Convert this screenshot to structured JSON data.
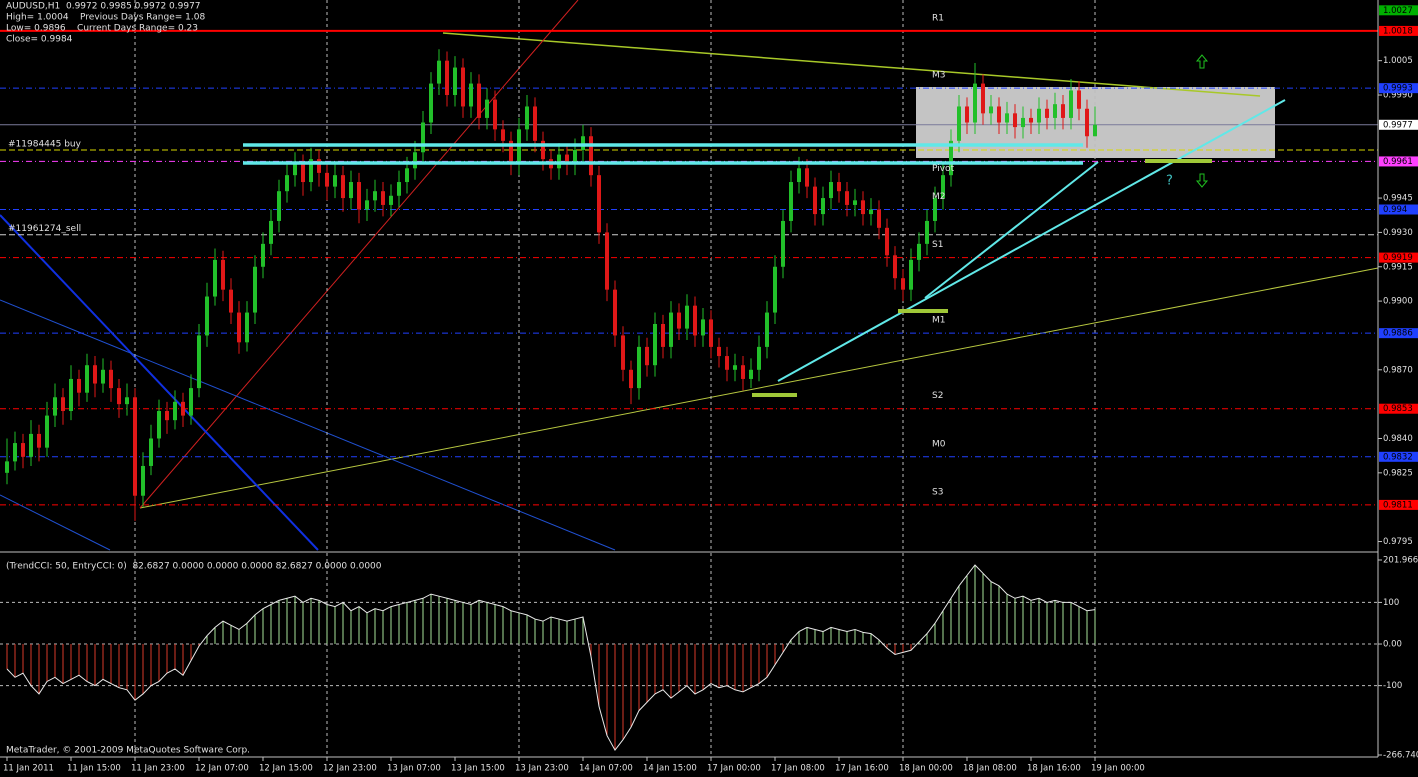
{
  "chart_data": [
    {
      "type": "candlestick",
      "title_lines": [
        "AUDUSD,H1  0.9972 0.9985 0.9972 0.9977",
        "High= 1.0004    Previous Days Range= 1.08",
        "Low= 0.9896    Current Days Range= 0.23",
        "Close= 0.9984"
      ],
      "up_color": "#22c02a",
      "down_color": "#e01818",
      "ylim": [
        0.97913,
        1.00315
      ],
      "yticks": [
        1.0005,
        {
          "value": 0.999,
          "label": "0.9990"
        },
        0.9945,
        {
          "value": 0.993,
          "label": "0.9930"
        },
        0.9915,
        {
          "value": 0.99,
          "label": "0.9900"
        },
        {
          "value": 0.987,
          "label": "0.9870"
        },
        {
          "value": 0.984,
          "label": "0.9840"
        },
        0.9825,
        0.9795
      ],
      "xlim": [
        -0.875,
        171.375
      ],
      "xticks": [
        {
          "value": 0,
          "label": "11 Jan 2011"
        },
        {
          "value": 8,
          "label": "11 Jan 15:00"
        },
        {
          "value": 16,
          "label": "11 Jan 23:00"
        },
        {
          "value": 24,
          "label": "12 Jan 07:00"
        },
        {
          "value": 32,
          "label": "12 Jan 15:00"
        },
        {
          "value": 40,
          "label": "12 Jan 23:00"
        },
        {
          "value": 48,
          "label": "13 Jan 07:00"
        },
        {
          "value": 56,
          "label": "13 Jan 15:00"
        },
        {
          "value": 64,
          "label": "13 Jan 23:00"
        },
        {
          "value": 72,
          "label": "14 Jan 07:00"
        },
        {
          "value": 80,
          "label": "14 Jan 15:00"
        },
        {
          "value": 88,
          "label": "17 Jan 00:00"
        },
        {
          "value": 96,
          "label": "17 Jan 08:00"
        },
        {
          "value": 104,
          "label": "17 Jan 16:00"
        },
        {
          "value": 112,
          "label": "18 Jan 00:00"
        },
        {
          "value": 120,
          "label": "18 Jan 08:00"
        },
        {
          "value": 128,
          "label": "18 Jan 16:00"
        },
        {
          "value": 136,
          "label": "19 Jan 00:00"
        }
      ],
      "grid": true,
      "levels": [
        {
          "label": "R1",
          "value": 1.0018,
          "color": "#ff0000",
          "style": "solid"
        },
        {
          "label": "M3",
          "value": 0.9993,
          "color": "#2040ff",
          "style": "dashed"
        },
        {
          "label": "Pivot",
          "value": 0.9961,
          "color": "#ff40ff",
          "style": "dashed"
        },
        {
          "label": "M2",
          "value": 0.994,
          "color": "#2040ff",
          "style": "dashed"
        },
        {
          "label": "S1",
          "value": 0.9919,
          "color": "#ff0000",
          "style": "dashed"
        },
        {
          "label": "M1",
          "value": 0.9886,
          "color": "#2040ff",
          "style": "dashed"
        },
        {
          "label": "S2",
          "value": 0.9853,
          "color": "#ff0000",
          "style": "dashed"
        },
        {
          "label": "M0",
          "value": 0.9832,
          "color": "#2040ff",
          "style": "dashed"
        },
        {
          "label": "S3",
          "value": 0.9811,
          "color": "#ff0000",
          "style": "dashed"
        }
      ],
      "price_tags": [
        {
          "value": 1.0027,
          "color": "#00b000"
        },
        {
          "value": 0.9977,
          "color": "#ffffff"
        }
      ],
      "orders": [
        {
          "label": "#11984445 buy",
          "value": 0.9966,
          "color": "#d8d800"
        },
        {
          "label": "#11961274_sell",
          "value": 0.9929,
          "color": "#d0d0d0"
        }
      ],
      "annotation": "?",
      "candles": [
        [
          0.9825,
          0.984,
          0.982,
          0.983
        ],
        [
          0.983,
          0.9843,
          0.9826,
          0.9838
        ],
        [
          0.9838,
          0.9842,
          0.9827,
          0.9832
        ],
        [
          0.9832,
          0.9848,
          0.9828,
          0.9842
        ],
        [
          0.9842,
          0.9846,
          0.983,
          0.9836
        ],
        [
          0.9836,
          0.9856,
          0.9832,
          0.985
        ],
        [
          0.985,
          0.9864,
          0.9845,
          0.9858
        ],
        [
          0.9858,
          0.9862,
          0.9846,
          0.9852
        ],
        [
          0.9852,
          0.9872,
          0.9848,
          0.9866
        ],
        [
          0.9866,
          0.987,
          0.9854,
          0.986
        ],
        [
          0.986,
          0.9877,
          0.9856,
          0.9872
        ],
        [
          0.9872,
          0.9876,
          0.9858,
          0.9864
        ],
        [
          0.9864,
          0.9875,
          0.986,
          0.987
        ],
        [
          0.987,
          0.9874,
          0.9856,
          0.9862
        ],
        [
          0.9862,
          0.9866,
          0.9849,
          0.9855
        ],
        [
          0.9855,
          0.9864,
          0.985,
          0.9858
        ],
        [
          0.9858,
          0.9862,
          0.9804,
          0.9815
        ],
        [
          0.9815,
          0.9834,
          0.981,
          0.9828
        ],
        [
          0.9828,
          0.9846,
          0.9824,
          0.984
        ],
        [
          0.984,
          0.9857,
          0.9836,
          0.9852
        ],
        [
          0.9852,
          0.9856,
          0.9842,
          0.9848
        ],
        [
          0.9848,
          0.9861,
          0.9844,
          0.9856
        ],
        [
          0.9856,
          0.986,
          0.9845,
          0.985
        ],
        [
          0.985,
          0.9868,
          0.9846,
          0.9862
        ],
        [
          0.9862,
          0.989,
          0.9858,
          0.9885
        ],
        [
          0.9885,
          0.9908,
          0.988,
          0.9902
        ],
        [
          0.9902,
          0.9923,
          0.9898,
          0.9918
        ],
        [
          0.9918,
          0.9922,
          0.99,
          0.9905
        ],
        [
          0.9905,
          0.991,
          0.989,
          0.9895
        ],
        [
          0.9895,
          0.99,
          0.9877,
          0.9882
        ],
        [
          0.9882,
          0.99,
          0.9878,
          0.9895
        ],
        [
          0.9895,
          0.992,
          0.989,
          0.9915
        ],
        [
          0.9915,
          0.993,
          0.991,
          0.9925
        ],
        [
          0.9925,
          0.994,
          0.992,
          0.9935
        ],
        [
          0.9935,
          0.9953,
          0.993,
          0.9948
        ],
        [
          0.9948,
          0.996,
          0.9943,
          0.9955
        ],
        [
          0.9955,
          0.9965,
          0.995,
          0.996
        ],
        [
          0.996,
          0.9964,
          0.9946,
          0.9952
        ],
        [
          0.9952,
          0.9967,
          0.9948,
          0.9962
        ],
        [
          0.9962,
          0.9966,
          0.995,
          0.9956
        ],
        [
          0.9956,
          0.996,
          0.9944,
          0.995
        ],
        [
          0.995,
          0.996,
          0.9945,
          0.9955
        ],
        [
          0.9955,
          0.9959,
          0.9939,
          0.9945
        ],
        [
          0.9945,
          0.9957,
          0.994,
          0.9952
        ],
        [
          0.9952,
          0.9956,
          0.9934,
          0.994
        ],
        [
          0.994,
          0.9949,
          0.9935,
          0.9944
        ],
        [
          0.9944,
          0.9953,
          0.9939,
          0.9948
        ],
        [
          0.9948,
          0.9952,
          0.9937,
          0.9942
        ],
        [
          0.9942,
          0.9951,
          0.9937,
          0.9946
        ],
        [
          0.9946,
          0.9957,
          0.9941,
          0.9952
        ],
        [
          0.9952,
          0.9963,
          0.9947,
          0.9958
        ],
        [
          0.9958,
          0.997,
          0.9953,
          0.9965
        ],
        [
          0.9965,
          0.9983,
          0.996,
          0.9978
        ],
        [
          0.9978,
          1.0,
          0.9973,
          0.9995
        ],
        [
          0.9995,
          1.001,
          0.999,
          1.0005
        ],
        [
          1.0005,
          1.0009,
          0.9985,
          0.999
        ],
        [
          0.999,
          1.0007,
          0.9985,
          1.0002
        ],
        [
          1.0002,
          1.0006,
          0.998,
          0.9985
        ],
        [
          0.9985,
          1.0,
          0.998,
          0.9995
        ],
        [
          0.9995,
          0.9999,
          0.9975,
          0.998
        ],
        [
          0.998,
          0.9993,
          0.9975,
          0.9988
        ],
        [
          0.9988,
          0.9992,
          0.997,
          0.9975
        ],
        [
          0.9975,
          0.9979,
          0.9965,
          0.997
        ],
        [
          0.997,
          0.9974,
          0.9955,
          0.996
        ],
        [
          0.996,
          0.998,
          0.9955,
          0.9975
        ],
        [
          0.9975,
          0.999,
          0.997,
          0.9985
        ],
        [
          0.9985,
          0.9989,
          0.9965,
          0.997
        ],
        [
          0.997,
          0.9974,
          0.9957,
          0.9962
        ],
        [
          0.9962,
          0.9966,
          0.9953,
          0.9958
        ],
        [
          0.9958,
          0.9969,
          0.9953,
          0.9964
        ],
        [
          0.9964,
          0.9968,
          0.9955,
          0.996
        ],
        [
          0.996,
          0.9971,
          0.9955,
          0.9966
        ],
        [
          0.9966,
          0.9977,
          0.9961,
          0.9972
        ],
        [
          0.9972,
          0.9976,
          0.995,
          0.9955
        ],
        [
          0.9955,
          0.9959,
          0.9925,
          0.993
        ],
        [
          0.993,
          0.9934,
          0.99,
          0.9905
        ],
        [
          0.9905,
          0.9909,
          0.988,
          0.9885
        ],
        [
          0.9885,
          0.9889,
          0.9865,
          0.987
        ],
        [
          0.987,
          0.9874,
          0.9855,
          0.9862
        ],
        [
          0.9862,
          0.9885,
          0.9857,
          0.988
        ],
        [
          0.988,
          0.9884,
          0.9867,
          0.9872
        ],
        [
          0.9872,
          0.9895,
          0.9867,
          0.989
        ],
        [
          0.989,
          0.9894,
          0.9875,
          0.988
        ],
        [
          0.988,
          0.99,
          0.9875,
          0.9895
        ],
        [
          0.9895,
          0.9899,
          0.9883,
          0.9888
        ],
        [
          0.9888,
          0.9903,
          0.9883,
          0.9898
        ],
        [
          0.9898,
          0.9902,
          0.988,
          0.9885
        ],
        [
          0.9885,
          0.9897,
          0.988,
          0.9892
        ],
        [
          0.9892,
          0.9896,
          0.9875,
          0.988
        ],
        [
          0.988,
          0.9884,
          0.9871,
          0.9876
        ],
        [
          0.9876,
          0.988,
          0.9865,
          0.987
        ],
        [
          0.987,
          0.9877,
          0.9865,
          0.9872
        ],
        [
          0.9872,
          0.9876,
          0.9861,
          0.9866
        ],
        [
          0.9866,
          0.9875,
          0.9862,
          0.987
        ],
        [
          0.987,
          0.9885,
          0.9865,
          0.988
        ],
        [
          0.988,
          0.99,
          0.9875,
          0.9895
        ],
        [
          0.9895,
          0.992,
          0.989,
          0.9915
        ],
        [
          0.9915,
          0.994,
          0.991,
          0.9935
        ],
        [
          0.9935,
          0.9957,
          0.993,
          0.9952
        ],
        [
          0.9952,
          0.9963,
          0.9947,
          0.9958
        ],
        [
          0.9958,
          0.9962,
          0.9945,
          0.995
        ],
        [
          0.995,
          0.9954,
          0.9933,
          0.9938
        ],
        [
          0.9938,
          0.995,
          0.9933,
          0.9945
        ],
        [
          0.9945,
          0.9957,
          0.994,
          0.9952
        ],
        [
          0.9952,
          0.9956,
          0.9943,
          0.9948
        ],
        [
          0.9948,
          0.9952,
          0.9937,
          0.9942
        ],
        [
          0.9942,
          0.9949,
          0.9937,
          0.9944
        ],
        [
          0.9944,
          0.9948,
          0.9933,
          0.9938
        ],
        [
          0.9938,
          0.9945,
          0.9933,
          0.994
        ],
        [
          0.994,
          0.9944,
          0.9927,
          0.9932
        ],
        [
          0.9932,
          0.9936,
          0.9915,
          0.992
        ],
        [
          0.992,
          0.9924,
          0.9905,
          0.991
        ],
        [
          0.991,
          0.9914,
          0.99,
          0.9905
        ],
        [
          0.9905,
          0.9923,
          0.99,
          0.9918
        ],
        [
          0.9918,
          0.993,
          0.9913,
          0.9925
        ],
        [
          0.9925,
          0.994,
          0.992,
          0.9935
        ],
        [
          0.9935,
          0.995,
          0.993,
          0.9945
        ],
        [
          0.9945,
          0.996,
          0.994,
          0.9955
        ],
        [
          0.9955,
          0.9975,
          0.995,
          0.997
        ],
        [
          0.997,
          0.999,
          0.9965,
          0.9985
        ],
        [
          0.9985,
          0.9989,
          0.9973,
          0.9978
        ],
        [
          0.9978,
          1.0004,
          0.9973,
          0.9995
        ],
        [
          0.9995,
          0.9999,
          0.9977,
          0.9982
        ],
        [
          0.9982,
          0.999,
          0.9977,
          0.9985
        ],
        [
          0.9985,
          0.9989,
          0.9973,
          0.9978
        ],
        [
          0.9978,
          0.9987,
          0.9973,
          0.9982
        ],
        [
          0.9982,
          0.9986,
          0.9971,
          0.9976
        ],
        [
          0.9976,
          0.9985,
          0.9971,
          0.998
        ],
        [
          0.998,
          0.9984,
          0.9973,
          0.9978
        ],
        [
          0.9978,
          0.9989,
          0.9973,
          0.9984
        ],
        [
          0.9984,
          0.9988,
          0.9975,
          0.998
        ],
        [
          0.998,
          0.9991,
          0.9975,
          0.9986
        ],
        [
          0.9986,
          0.999,
          0.9975,
          0.998
        ],
        [
          0.998,
          0.9997,
          0.9975,
          0.9992
        ],
        [
          0.9992,
          0.9996,
          0.9979,
          0.9984
        ],
        [
          0.9984,
          0.9988,
          0.9967,
          0.9972
        ],
        [
          0.9972,
          0.9985,
          0.9972,
          0.9977
        ]
      ]
    },
    {
      "type": "cci",
      "title": "(TrendCCI: 50, EntryCCI: 0)  82.6827 0.0000 0.0000 0.0000 82.6827 0.0000 0.0000",
      "pos_color": "#a8e49a",
      "neg_color": "#d83a2a",
      "line_color": "#e8e8e8",
      "ylim": [
        -266.74,
        201.966
      ],
      "yticks": [
        201.966,
        100,
        {
          "value": 0,
          "label": "0.00"
        },
        -100,
        {
          "value": -266.74,
          "label": "-266.740"
        }
      ],
      "values": [
        -60,
        -80,
        -70,
        -100,
        -120,
        -90,
        -80,
        -95,
        -85,
        -75,
        -90,
        -100,
        -85,
        -95,
        -105,
        -110,
        -135,
        -120,
        -100,
        -90,
        -70,
        -60,
        -75,
        -40,
        -5,
        20,
        40,
        55,
        45,
        35,
        50,
        70,
        85,
        95,
        105,
        110,
        115,
        100,
        110,
        105,
        95,
        90,
        100,
        80,
        90,
        75,
        85,
        80,
        90,
        95,
        100,
        105,
        110,
        120,
        115,
        110,
        105,
        100,
        95,
        105,
        100,
        95,
        90,
        80,
        75,
        70,
        60,
        55,
        65,
        60,
        55,
        60,
        65,
        -30,
        -150,
        -220,
        -255,
        -230,
        -200,
        -160,
        -140,
        -120,
        -110,
        -130,
        -115,
        -100,
        -120,
        -110,
        -95,
        -105,
        -100,
        -110,
        -115,
        -105,
        -95,
        -80,
        -50,
        -20,
        10,
        30,
        40,
        35,
        30,
        40,
        35,
        30,
        35,
        28,
        25,
        10,
        -10,
        -25,
        -20,
        -15,
        5,
        25,
        50,
        80,
        110,
        140,
        165,
        190,
        170,
        150,
        140,
        120,
        110,
        115,
        105,
        110,
        100,
        105,
        100,
        100,
        90,
        80,
        82.6827
      ]
    }
  ],
  "footer": "MetaTrader, © 2001-2009 MetaQuotes Software Corp."
}
